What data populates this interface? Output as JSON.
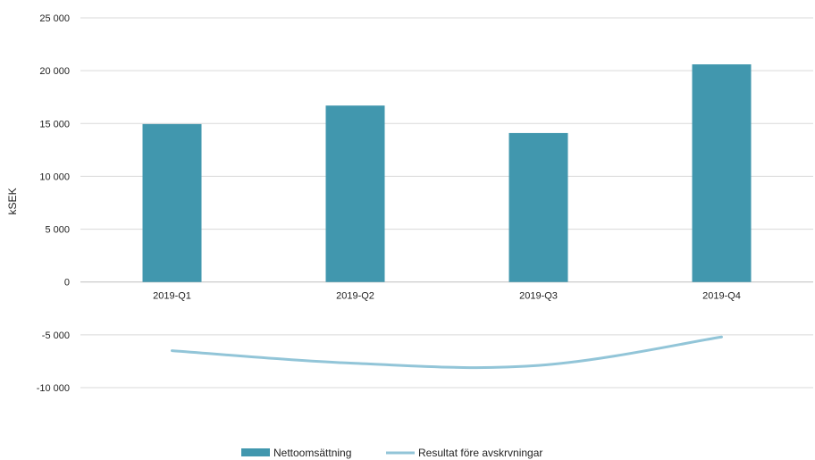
{
  "chart_data": {
    "type": "bar",
    "categories": [
      "2019-Q1",
      "2019-Q2",
      "2019-Q3",
      "2019-Q4"
    ],
    "series": [
      {
        "name": "Nettoomsättning",
        "type": "bar",
        "color": "#4197ae",
        "values": [
          14950,
          16700,
          14100,
          20600
        ]
      },
      {
        "name": "Resultat före avskrvningar",
        "type": "line",
        "color": "#92c5d8",
        "values": [
          -6500,
          -7700,
          -7900,
          -5200
        ]
      }
    ],
    "ylabel": "kSEK",
    "ylim": [
      -10000,
      25000
    ],
    "ytick_values": [
      25000,
      20000,
      15000,
      10000,
      5000,
      0,
      -5000,
      -10000
    ],
    "ytick_labels": [
      "25 000",
      "20 000",
      "15 000",
      "10 000",
      "5 000",
      "0",
      "-5 000",
      "-10 000"
    ],
    "grid": true,
    "legend": "bottom-center"
  }
}
